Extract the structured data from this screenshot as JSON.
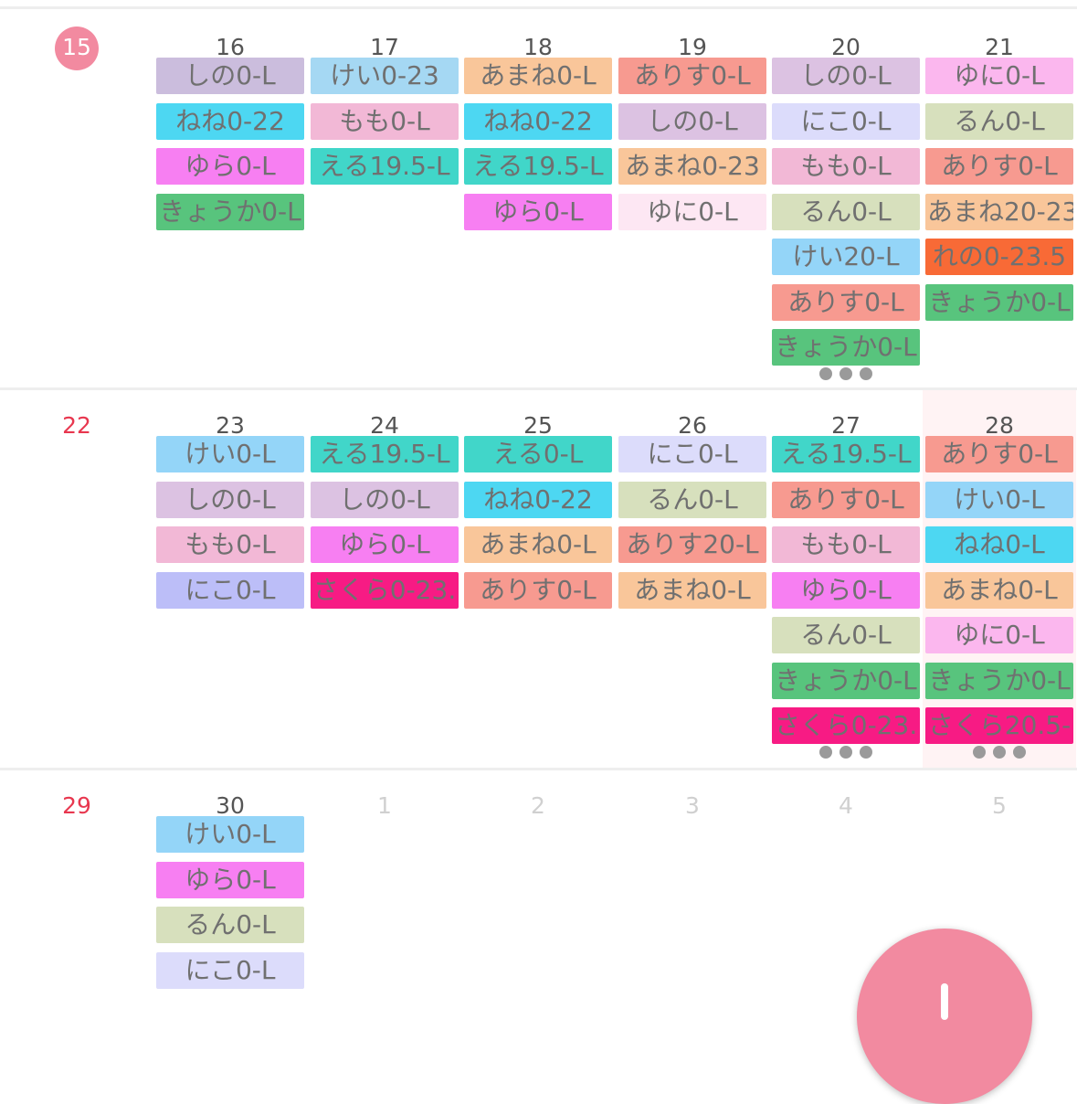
{
  "colors": {
    "sunday": "#e8374f",
    "today": "#f28aa0",
    "other_month": "#d0d0d0",
    "saturday_highlight": "#fff3f4",
    "fab": "#f28aa0"
  },
  "more_indicator_icon": "ellipsis-icon",
  "fab_icon": "plus-icon",
  "weeks": [
    {
      "days": [
        {
          "num": "15",
          "today": true,
          "events": []
        },
        {
          "num": "16",
          "events": [
            {
              "label": "しの0-L",
              "color": "#cbbddd"
            },
            {
              "label": "ねね0-22",
              "color": "#4dd7f2"
            },
            {
              "label": "ゆら0-L",
              "color": "#f77ff2"
            },
            {
              "label": "きょうか0-L",
              "color": "#58c47d"
            }
          ]
        },
        {
          "num": "17",
          "events": [
            {
              "label": "けい0-23",
              "color": "#a5d8f3"
            },
            {
              "label": "もも0-L",
              "color": "#f2b8d6"
            },
            {
              "label": "える19.5-L",
              "color": "#41d6c9"
            }
          ]
        },
        {
          "num": "18",
          "events": [
            {
              "label": "あまね0-L",
              "color": "#f9c69a"
            },
            {
              "label": "ねね0-22",
              "color": "#4dd7f2"
            },
            {
              "label": "える19.5-L",
              "color": "#41d6c9"
            },
            {
              "label": "ゆら0-L",
              "color": "#f77ff2"
            }
          ]
        },
        {
          "num": "19",
          "events": [
            {
              "label": "ありす0-L",
              "color": "#f79a90"
            },
            {
              "label": "しの0-L",
              "color": "#dcc2e2"
            },
            {
              "label": "あまね0-23",
              "color": "#f9c69a"
            },
            {
              "label": "ゆに0-L",
              "color": "#fde7f3"
            }
          ]
        },
        {
          "num": "20",
          "events": [
            {
              "label": "しの0-L",
              "color": "#dcc2e2"
            },
            {
              "label": "にこ0-L",
              "color": "#dcdcfb"
            },
            {
              "label": "もも0-L",
              "color": "#f2b8d6"
            },
            {
              "label": "るん0-L",
              "color": "#d7e0bd"
            },
            {
              "label": "けい20-L",
              "color": "#94d5f8"
            },
            {
              "label": "ありす0-L",
              "color": "#f79a90"
            },
            {
              "label": "きょうか0-L",
              "color": "#58c47d"
            }
          ],
          "more": true
        },
        {
          "num": "21",
          "events": [
            {
              "label": "ゆに0-L",
              "color": "#fbb7ee"
            },
            {
              "label": "るん0-L",
              "color": "#d7e0bd"
            },
            {
              "label": "ありす0-L",
              "color": "#f79a90"
            },
            {
              "label": "あまね20-23",
              "color": "#f9c69a"
            },
            {
              "label": "れの0-23.5",
              "color": "#f86a36"
            },
            {
              "label": "きょうか0-L",
              "color": "#58c47d"
            }
          ]
        }
      ]
    },
    {
      "days": [
        {
          "num": "22",
          "events": []
        },
        {
          "num": "23",
          "events": [
            {
              "label": "けい0-L",
              "color": "#94d5f8"
            },
            {
              "label": "しの0-L",
              "color": "#dcc2e2"
            },
            {
              "label": "もも0-L",
              "color": "#f2b8d6"
            },
            {
              "label": "にこ0-L",
              "color": "#bcbef8"
            }
          ]
        },
        {
          "num": "24",
          "events": [
            {
              "label": "える19.5-L",
              "color": "#41d6c9"
            },
            {
              "label": "しの0-L",
              "color": "#dcc2e2"
            },
            {
              "label": "ゆら0-L",
              "color": "#f77ff2"
            },
            {
              "label": "さくら0-23.",
              "color": "#f71b84"
            }
          ]
        },
        {
          "num": "25",
          "events": [
            {
              "label": "える0-L",
              "color": "#41d6c9"
            },
            {
              "label": "ねね0-22",
              "color": "#4dd7f2"
            },
            {
              "label": "あまね0-L",
              "color": "#f9c69a"
            },
            {
              "label": "ありす0-L",
              "color": "#f79a90"
            }
          ]
        },
        {
          "num": "26",
          "events": [
            {
              "label": "にこ0-L",
              "color": "#dcdcfb"
            },
            {
              "label": "るん0-L",
              "color": "#d7e0bd"
            },
            {
              "label": "ありす20-L",
              "color": "#f79a90"
            },
            {
              "label": "あまね0-L",
              "color": "#f9c69a"
            }
          ]
        },
        {
          "num": "27",
          "events": [
            {
              "label": "える19.5-L",
              "color": "#41d6c9"
            },
            {
              "label": "ありす0-L",
              "color": "#f79a90"
            },
            {
              "label": "もも0-L",
              "color": "#f2b8d6"
            },
            {
              "label": "ゆら0-L",
              "color": "#f77ff2"
            },
            {
              "label": "るん0-L",
              "color": "#d7e0bd"
            },
            {
              "label": "きょうか0-L",
              "color": "#58c47d"
            },
            {
              "label": "さくら0-23.",
              "color": "#f71b84"
            }
          ],
          "more": true
        },
        {
          "num": "28",
          "saturday": true,
          "events": [
            {
              "label": "ありす0-L",
              "color": "#f79a90"
            },
            {
              "label": "けい0-L",
              "color": "#94d5f8"
            },
            {
              "label": "ねね0-L",
              "color": "#4dd7f2"
            },
            {
              "label": "あまね0-L",
              "color": "#f9c69a"
            },
            {
              "label": "ゆに0-L",
              "color": "#fbb7ee"
            },
            {
              "label": "きょうか0-L",
              "color": "#58c47d"
            },
            {
              "label": "さくら20.5-",
              "color": "#f71b84"
            }
          ],
          "more": true
        }
      ]
    },
    {
      "days": [
        {
          "num": "29",
          "events": []
        },
        {
          "num": "30",
          "events": [
            {
              "label": "けい0-L",
              "color": "#94d5f8"
            },
            {
              "label": "ゆら0-L",
              "color": "#f77ff2"
            },
            {
              "label": "るん0-L",
              "color": "#d7e0bd"
            },
            {
              "label": "にこ0-L",
              "color": "#dcdcfb"
            }
          ]
        },
        {
          "num": "1",
          "other_month": true,
          "events": []
        },
        {
          "num": "2",
          "other_month": true,
          "events": []
        },
        {
          "num": "3",
          "other_month": true,
          "events": []
        },
        {
          "num": "4",
          "other_month": true,
          "events": []
        },
        {
          "num": "5",
          "other_month": true,
          "events": []
        }
      ]
    }
  ]
}
